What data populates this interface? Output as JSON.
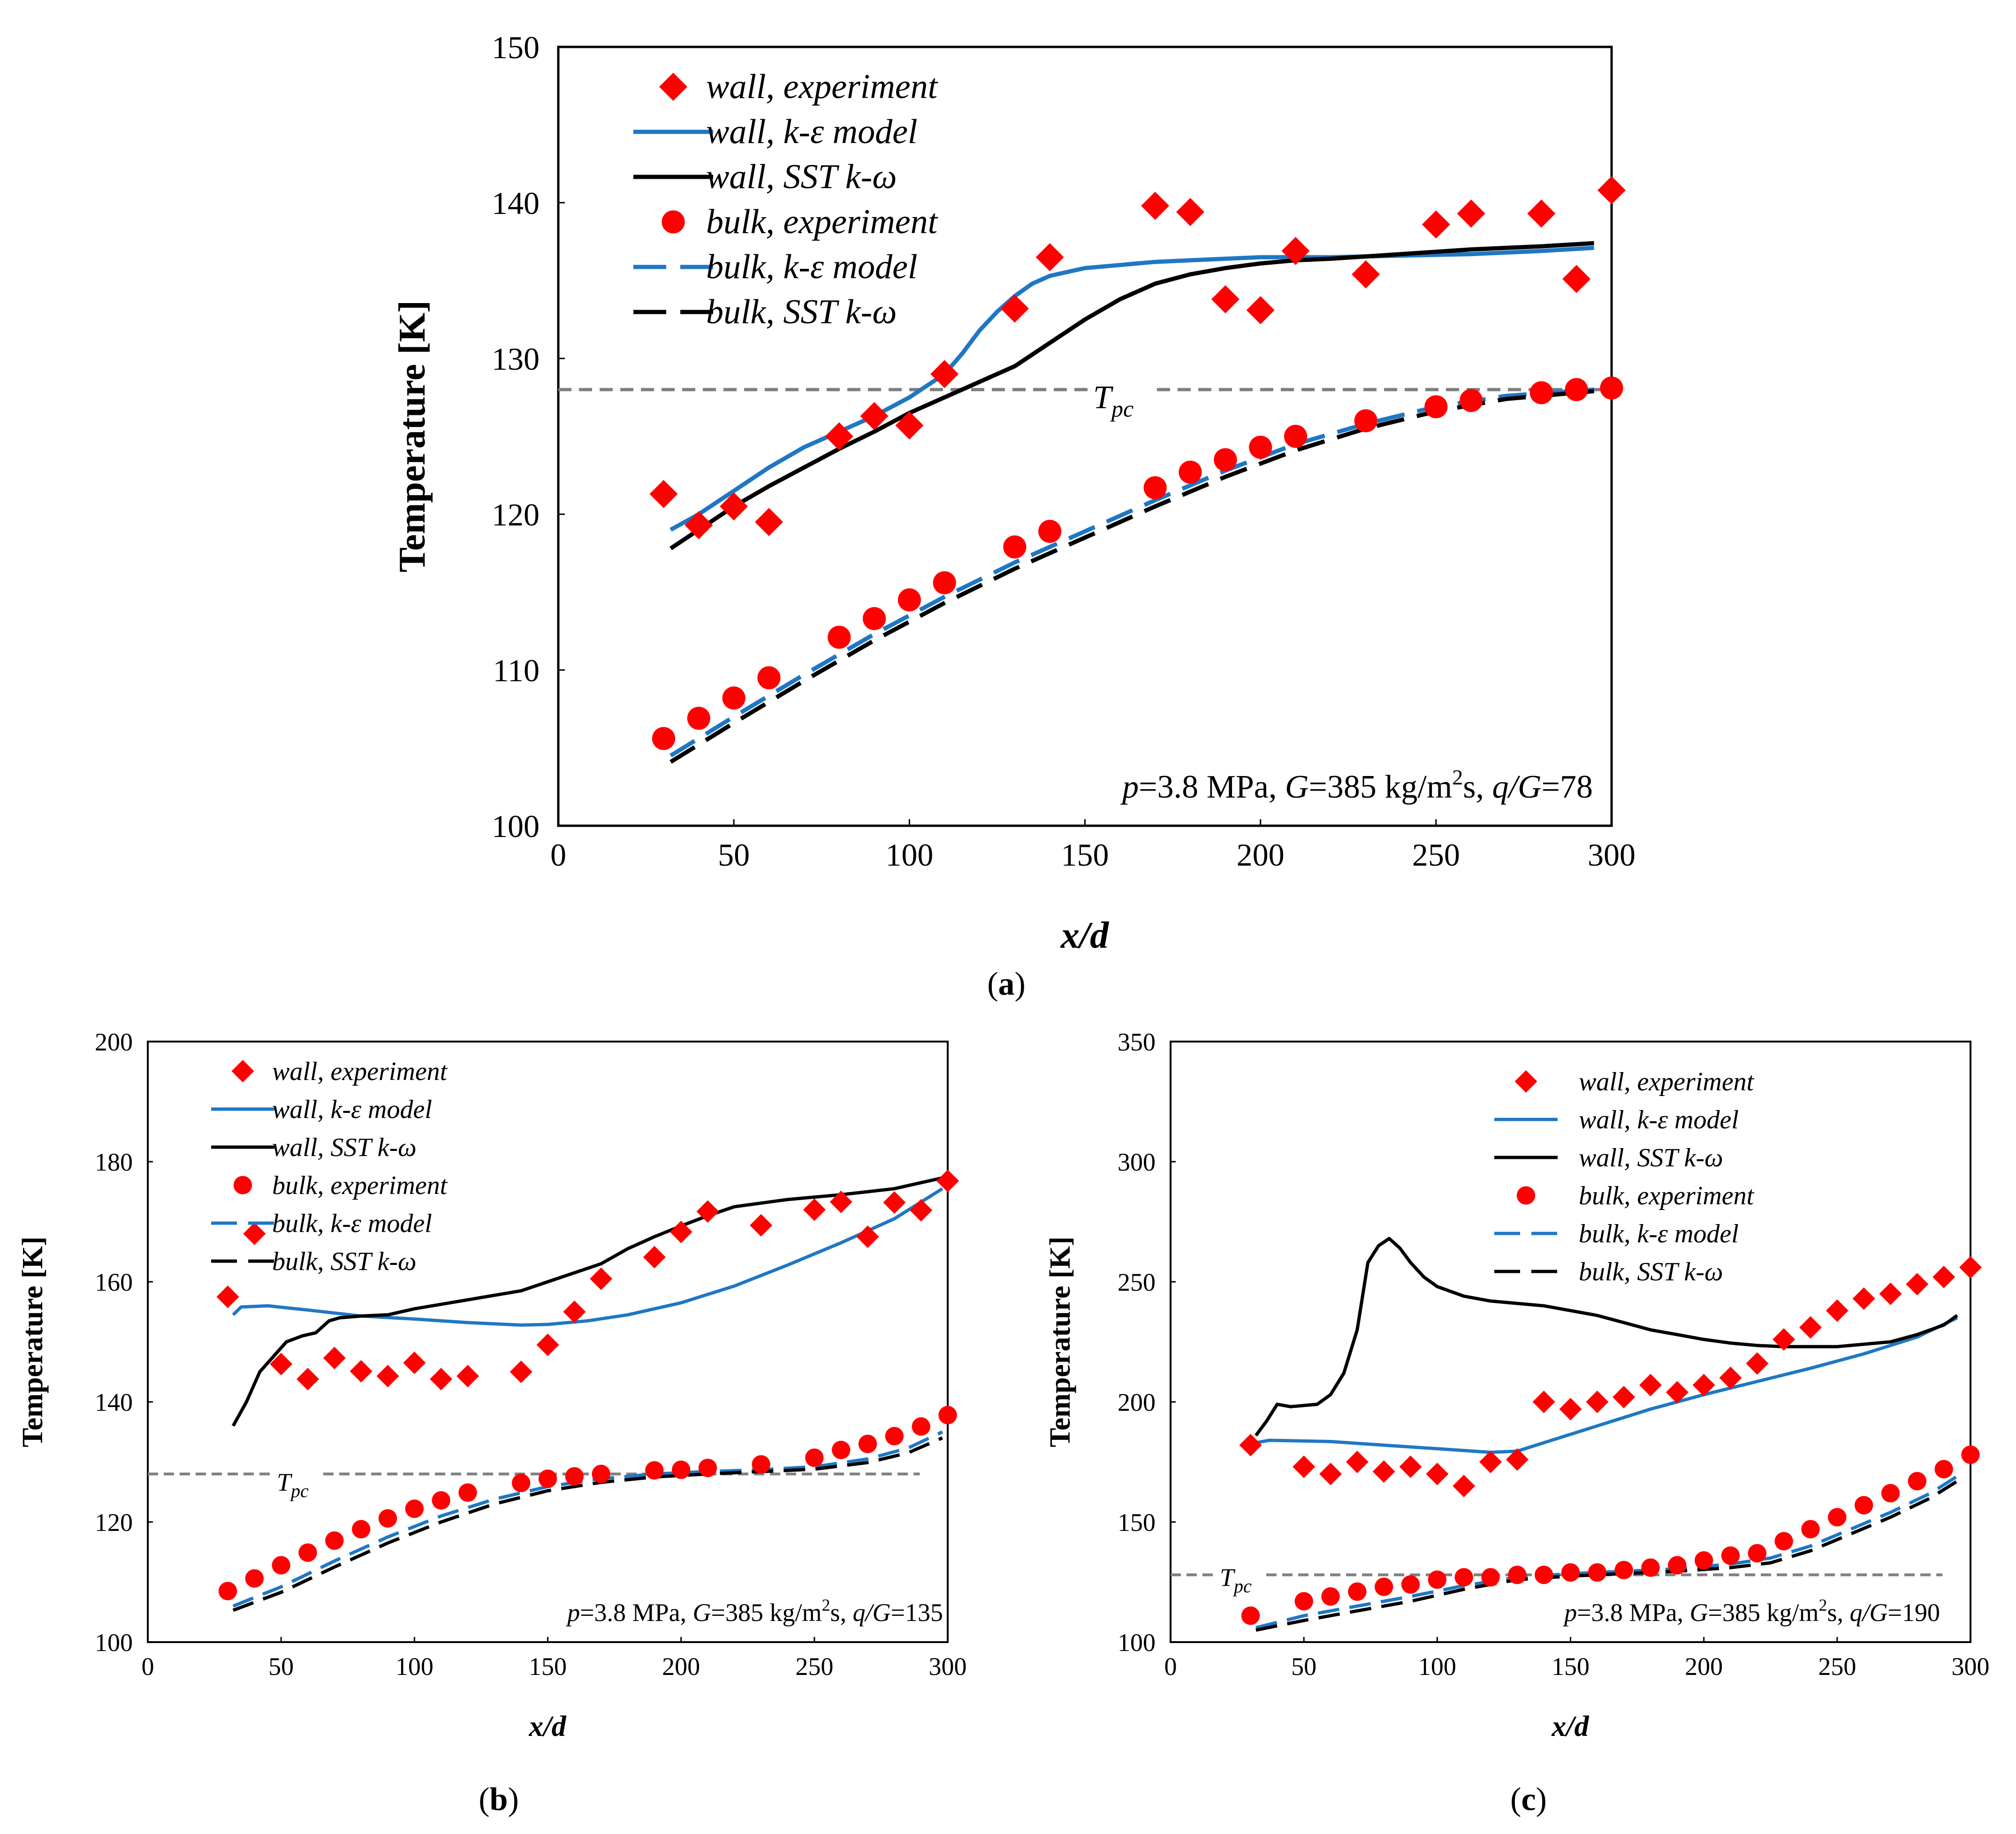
{
  "figure": {
    "tpc_label_main": "T",
    "tpc_label_sub": "pc",
    "panel_labels": [
      "(a)",
      "(b)",
      "(c)"
    ]
  },
  "colors": {
    "experiment": "#ff0000",
    "k_epsilon": "#1f77c4",
    "sst": "#000000",
    "tpc_line": "#808080"
  },
  "chart_data": [
    {
      "id": "a",
      "type": "line",
      "title": "",
      "annotation": {
        "p": "p",
        "p_val": "=3.8 MPa, ",
        "g": "G",
        "g_val": "=385 kg/m",
        "sup": "2",
        "s_text": "s, ",
        "qg": "q/G",
        "qg_val": "=78"
      },
      "xlabel": "x/d",
      "ylabel": "Temperature [K]",
      "xlim": [
        0,
        300
      ],
      "ylim": [
        100,
        150
      ],
      "xticks": [
        0,
        50,
        100,
        150,
        200,
        250,
        300
      ],
      "yticks": [
        100,
        110,
        120,
        130,
        140,
        150
      ],
      "tpc": 128,
      "legend": [
        "wall, experiment",
        "wall, k-ε model",
        "wall, SST k-ω",
        "bulk, experiment",
        "bulk, k-ε model",
        "bulk, SST k-ω"
      ],
      "series": [
        {
          "name": "wall, experiment",
          "kind": "diamond",
          "x": [
            30,
            40,
            50,
            60,
            80,
            90,
            100,
            110,
            130,
            140,
            170,
            180,
            190,
            200,
            210,
            230,
            250,
            260,
            280,
            290,
            300
          ],
          "y": [
            121.3,
            119.3,
            120.5,
            119.5,
            125,
            126.3,
            125.7,
            129,
            133.2,
            136.5,
            139.8,
            139.4,
            133.8,
            133.1,
            136.9,
            135.4,
            138.6,
            139.3,
            139.3,
            135.1,
            140.8
          ]
        },
        {
          "name": "wall, k-ε model",
          "kind": "solid-blue",
          "x": [
            32,
            40,
            50,
            60,
            70,
            80,
            90,
            100,
            110,
            115,
            120,
            125,
            130,
            135,
            140,
            150,
            160,
            170,
            180,
            190,
            200,
            210,
            220,
            240,
            260,
            280,
            295
          ],
          "y": [
            119,
            120,
            121.5,
            123,
            124.3,
            125.3,
            126.3,
            127.5,
            129,
            130.3,
            131.8,
            133,
            134,
            134.8,
            135.3,
            135.8,
            136,
            136.2,
            136.3,
            136.4,
            136.5,
            136.5,
            136.5,
            136.6,
            136.7,
            136.9,
            137.1
          ]
        },
        {
          "name": "wall, SST k-ω",
          "kind": "solid-black",
          "x": [
            32,
            40,
            50,
            60,
            70,
            80,
            90,
            100,
            110,
            120,
            130,
            140,
            150,
            160,
            170,
            180,
            190,
            200,
            210,
            220,
            240,
            260,
            280,
            295
          ],
          "y": [
            117.8,
            119,
            120.5,
            121.8,
            123,
            124.2,
            125.3,
            126.5,
            127.5,
            128.5,
            129.5,
            131,
            132.5,
            133.8,
            134.8,
            135.4,
            135.8,
            136.1,
            136.3,
            136.4,
            136.7,
            137,
            137.2,
            137.4
          ]
        },
        {
          "name": "bulk, experiment",
          "kind": "circle",
          "x": [
            30,
            40,
            50,
            60,
            80,
            90,
            100,
            110,
            130,
            140,
            170,
            180,
            190,
            200,
            210,
            230,
            250,
            260,
            280,
            290,
            300
          ],
          "y": [
            105.6,
            106.9,
            108.2,
            109.5,
            112.1,
            113.3,
            114.5,
            115.6,
            117.9,
            118.9,
            121.7,
            122.7,
            123.5,
            124.3,
            125,
            126,
            126.9,
            127.3,
            127.8,
            128,
            128.1
          ]
        },
        {
          "name": "bulk, k-ε model",
          "kind": "dashed-blue",
          "x": [
            32,
            50,
            70,
            90,
            110,
            130,
            150,
            170,
            190,
            210,
            230,
            250,
            270,
            295
          ],
          "y": [
            104.5,
            107,
            109.7,
            112.3,
            114.7,
            116.9,
            118.9,
            120.9,
            122.8,
            124.5,
            125.8,
            126.9,
            127.6,
            128
          ]
        },
        {
          "name": "bulk, SST k-ω",
          "kind": "dashed-black",
          "x": [
            32,
            50,
            70,
            90,
            110,
            130,
            150,
            170,
            190,
            210,
            230,
            250,
            270,
            295
          ],
          "y": [
            104.1,
            106.6,
            109.3,
            111.9,
            114.3,
            116.5,
            118.5,
            120.5,
            122.4,
            124.1,
            125.5,
            126.6,
            127.4,
            127.9
          ]
        }
      ]
    },
    {
      "id": "b",
      "type": "line",
      "title": "",
      "annotation": {
        "p": "p",
        "p_val": "=3.8 MPa, ",
        "g": "G",
        "g_val": "=385 kg/m",
        "sup": "2",
        "s_text": "s, ",
        "qg": "q/G",
        "qg_val": "=135"
      },
      "xlabel": "x/d",
      "ylabel": "Temperature [K]",
      "xlim": [
        0,
        300
      ],
      "ylim": [
        100,
        200
      ],
      "xticks": [
        0,
        50,
        100,
        150,
        200,
        250,
        300
      ],
      "yticks": [
        100,
        120,
        140,
        160,
        180,
        200
      ],
      "tpc": 128,
      "legend": [
        "wall, experiment",
        "wall, k-ε model",
        "wall, SST k-ω",
        "bulk, experiment",
        "bulk, k-ε model",
        "bulk, SST k-ω"
      ],
      "series": [
        {
          "name": "wall, experiment",
          "kind": "diamond",
          "x": [
            30,
            40,
            50,
            60,
            70,
            80,
            90,
            100,
            110,
            120,
            140,
            150,
            160,
            170,
            190,
            200,
            210,
            230,
            250,
            260,
            270,
            280,
            290,
            300
          ],
          "y": [
            157.5,
            168,
            146.3,
            143.8,
            147.3,
            145.1,
            144.3,
            146.5,
            143.8,
            144.3,
            145,
            149.5,
            155,
            160.5,
            164.1,
            168.3,
            171.7,
            169.4,
            172,
            173.3,
            167.5,
            173.2,
            171.9,
            176.8
          ]
        },
        {
          "name": "wall, k-ε model",
          "kind": "solid-blue",
          "x": [
            32,
            35,
            45,
            60,
            80,
            100,
            120,
            140,
            150,
            165,
            180,
            200,
            220,
            240,
            260,
            280,
            298
          ],
          "y": [
            154.5,
            155.8,
            156,
            155.3,
            154.3,
            153.8,
            153.2,
            152.8,
            152.9,
            153.5,
            154.5,
            156.5,
            159.3,
            162.8,
            166.5,
            170.5,
            175.5
          ]
        },
        {
          "name": "wall, SST k-ω",
          "kind": "solid-black",
          "x": [
            32,
            37,
            42,
            47,
            52,
            58,
            63,
            68,
            72,
            80,
            90,
            100,
            120,
            140,
            150,
            160,
            170,
            180,
            190,
            200,
            210,
            220,
            240,
            260,
            280,
            298
          ],
          "y": [
            136,
            140,
            145,
            147.5,
            150,
            151,
            151.5,
            153.5,
            154,
            154.3,
            154.5,
            155.5,
            157,
            158.5,
            160,
            161.5,
            163,
            165.5,
            167.5,
            169.3,
            171,
            172.5,
            173.7,
            174.5,
            175.5,
            177.3
          ]
        },
        {
          "name": "bulk, experiment",
          "kind": "circle",
          "x": [
            30,
            40,
            50,
            60,
            70,
            80,
            90,
            100,
            110,
            120,
            140,
            150,
            160,
            170,
            190,
            200,
            210,
            230,
            250,
            260,
            270,
            280,
            290,
            300
          ],
          "y": [
            108.5,
            110.6,
            112.8,
            114.9,
            116.9,
            118.8,
            120.6,
            122.2,
            123.6,
            124.9,
            126.5,
            127.2,
            127.6,
            128,
            128.6,
            128.7,
            129,
            129.6,
            130.7,
            132,
            133,
            134.3,
            135.9,
            137.8
          ]
        },
        {
          "name": "bulk, k-ε model",
          "kind": "dashed-blue",
          "x": [
            32,
            50,
            70,
            90,
            110,
            130,
            150,
            170,
            190,
            210,
            230,
            250,
            270,
            285,
            298
          ],
          "y": [
            106,
            109.2,
            113.5,
            117.5,
            121,
            123.8,
            125.9,
            127.2,
            128,
            128.4,
            128.7,
            129.2,
            130.5,
            132.3,
            135
          ]
        },
        {
          "name": "bulk, SST k-ω",
          "kind": "dashed-black",
          "x": [
            32,
            50,
            70,
            90,
            110,
            130,
            150,
            170,
            190,
            210,
            230,
            250,
            270,
            285,
            298
          ],
          "y": [
            105.3,
            108.3,
            112.5,
            116.5,
            120,
            123,
            125.2,
            126.6,
            127.5,
            128,
            128.4,
            128.8,
            129.9,
            131.5,
            134
          ]
        }
      ]
    },
    {
      "id": "c",
      "type": "line",
      "title": "",
      "annotation": {
        "p": "p",
        "p_val": "=3.8 MPa, ",
        "g": "G",
        "g_val": "=385 kg/m",
        "sup": "2",
        "s_text": "s, ",
        "qg": "q/G",
        "qg_val": "=190"
      },
      "xlabel": "x/d",
      "ylabel": "Temperature [K]",
      "xlim": [
        0,
        300
      ],
      "ylim": [
        100,
        350
      ],
      "xticks": [
        0,
        50,
        100,
        150,
        200,
        250,
        300
      ],
      "yticks": [
        100,
        150,
        200,
        250,
        300,
        350
      ],
      "tpc": 128,
      "legend": [
        "wall, experiment",
        "wall, k-ε model",
        "wall, SST k-ω",
        "bulk, experiment",
        "bulk, k-ε model",
        "bulk, SST k-ω"
      ],
      "series": [
        {
          "name": "wall, experiment",
          "kind": "diamond",
          "x": [
            30,
            50,
            60,
            70,
            80,
            90,
            100,
            110,
            120,
            130,
            140,
            150,
            160,
            170,
            180,
            190,
            200,
            210,
            220,
            230,
            240,
            250,
            260,
            270,
            280,
            290,
            300
          ],
          "y": [
            182,
            173,
            170,
            175,
            171,
            173,
            170,
            165,
            175,
            176,
            200,
            197,
            200,
            202,
            207,
            204,
            207,
            210,
            216,
            226,
            231,
            238,
            243,
            245,
            249,
            252,
            256
          ]
        },
        {
          "name": "wall, k-ε model",
          "kind": "solid-blue",
          "x": [
            32,
            37,
            60,
            80,
            100,
            120,
            130,
            140,
            160,
            180,
            200,
            220,
            240,
            260,
            280,
            295
          ],
          "y": [
            183,
            184,
            183.5,
            182,
            180.5,
            179,
            179.5,
            183,
            190,
            197,
            203,
            208.5,
            214,
            220,
            227,
            235
          ]
        },
        {
          "name": "wall, SST k-ω",
          "kind": "solid-black",
          "x": [
            32,
            36,
            40,
            45,
            55,
            60,
            65,
            70,
            74,
            78,
            82,
            86,
            90,
            95,
            100,
            110,
            120,
            130,
            140,
            150,
            160,
            170,
            180,
            190,
            200,
            210,
            220,
            230,
            240,
            250,
            260,
            270,
            280,
            290,
            295
          ],
          "y": [
            186,
            192,
            199,
            198,
            199,
            203,
            212,
            230,
            258,
            265,
            268,
            264,
            258,
            252,
            248,
            244,
            242,
            241,
            240,
            238,
            236,
            233,
            230,
            228,
            226,
            224.5,
            223.5,
            223,
            223,
            223,
            224,
            225,
            228,
            232,
            236
          ]
        },
        {
          "name": "bulk, experiment",
          "kind": "circle",
          "x": [
            30,
            50,
            60,
            70,
            80,
            90,
            100,
            110,
            120,
            130,
            140,
            150,
            160,
            170,
            180,
            190,
            200,
            210,
            220,
            230,
            240,
            250,
            260,
            270,
            280,
            290,
            300
          ],
          "y": [
            111,
            117,
            119,
            121,
            123,
            124,
            126,
            127,
            127,
            128,
            128,
            129,
            129,
            130,
            131,
            132,
            134,
            136,
            137,
            142,
            147,
            152,
            157,
            162,
            167,
            172,
            178
          ]
        },
        {
          "name": "bulk, k-ε model",
          "kind": "dashed-blue",
          "x": [
            32,
            50,
            70,
            90,
            110,
            130,
            150,
            170,
            190,
            210,
            225,
            240,
            255,
            270,
            285,
            295
          ],
          "y": [
            106,
            111,
            115,
            119,
            123.5,
            127,
            128.5,
            129.5,
            130.5,
            132.5,
            135,
            140,
            147,
            154,
            162,
            169
          ]
        },
        {
          "name": "bulk, SST k-ω",
          "kind": "dashed-black",
          "x": [
            32,
            50,
            70,
            90,
            110,
            130,
            150,
            170,
            190,
            210,
            225,
            240,
            255,
            270,
            285,
            295
          ],
          "y": [
            105,
            109,
            113,
            117,
            122,
            126,
            127.5,
            128.5,
            129.5,
            131,
            133,
            138,
            145,
            152,
            160,
            167
          ]
        }
      ]
    }
  ]
}
